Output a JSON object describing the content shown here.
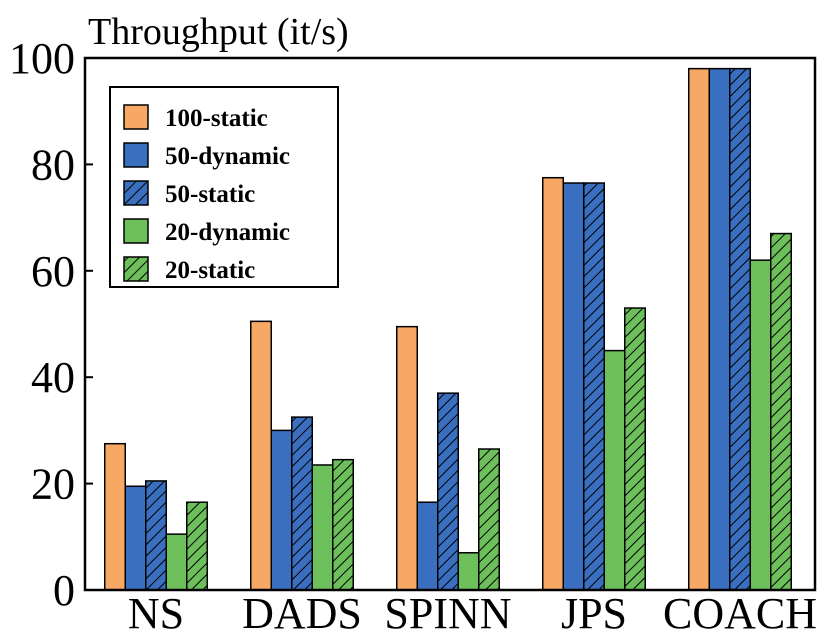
{
  "chart_data": {
    "type": "bar",
    "title": "",
    "xlabel": "",
    "ylabel": "Throughput (it/s)",
    "ylim": [
      0,
      100
    ],
    "yticks": [
      0,
      20,
      40,
      60,
      80,
      100
    ],
    "grid": false,
    "legend_position": "top-left",
    "categories": [
      "NS",
      "DADS",
      "SPINN",
      "JPS",
      "COACH"
    ],
    "series": [
      {
        "name": "100-static",
        "color": "#F7A865",
        "hatch": false,
        "values": [
          27.5,
          50.5,
          49.5,
          77.5,
          98
        ]
      },
      {
        "name": "50-dynamic",
        "color": "#3A6FC0",
        "hatch": false,
        "values": [
          19.5,
          30,
          16.5,
          76.5,
          98
        ]
      },
      {
        "name": "50-static",
        "color": "#3A6FC0",
        "hatch": true,
        "values": [
          20.5,
          32.5,
          37,
          76.5,
          98
        ]
      },
      {
        "name": "20-dynamic",
        "color": "#6DBF5B",
        "hatch": false,
        "values": [
          10.5,
          23.5,
          7,
          45,
          62
        ]
      },
      {
        "name": "20-static",
        "color": "#6DBF5B",
        "hatch": true,
        "values": [
          16.5,
          24.5,
          26.5,
          53,
          67
        ]
      }
    ]
  }
}
